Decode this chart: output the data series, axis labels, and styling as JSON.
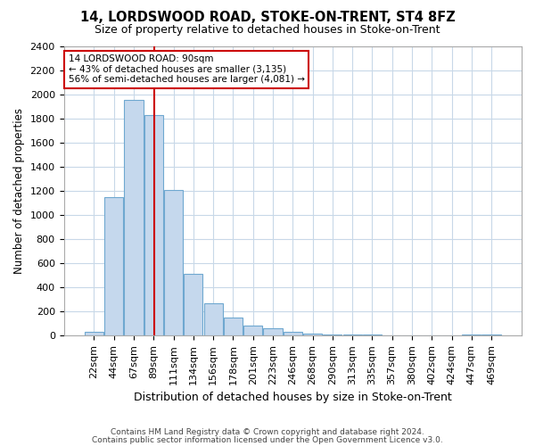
{
  "title": "14, LORDSWOOD ROAD, STOKE-ON-TRENT, ST4 8FZ",
  "subtitle": "Size of property relative to detached houses in Stoke-on-Trent",
  "xlabel": "Distribution of detached houses by size in Stoke-on-Trent",
  "ylabel": "Number of detached properties",
  "bar_labels": [
    "22sqm",
    "44sqm",
    "67sqm",
    "89sqm",
    "111sqm",
    "134sqm",
    "156sqm",
    "178sqm",
    "201sqm",
    "223sqm",
    "246sqm",
    "268sqm",
    "290sqm",
    "313sqm",
    "335sqm",
    "357sqm",
    "380sqm",
    "402sqm",
    "424sqm",
    "447sqm",
    "469sqm"
  ],
  "bar_values": [
    30,
    1150,
    1950,
    1830,
    1210,
    510,
    265,
    150,
    80,
    60,
    35,
    20,
    12,
    10,
    8,
    6,
    4,
    3,
    2,
    10,
    10
  ],
  "bar_color": "#c5d8ed",
  "bar_edge_color": "#6fa8d0",
  "vline_color": "#cc0000",
  "annotation_title": "14 LORDSWOOD ROAD: 90sqm",
  "annotation_line1": "← 43% of detached houses are smaller (3,135)",
  "annotation_line2": "56% of semi-detached houses are larger (4,081) →",
  "annotation_box_color": "#ffffff",
  "annotation_box_edge": "#cc0000",
  "ylim": [
    0,
    2400
  ],
  "yticks": [
    0,
    200,
    400,
    600,
    800,
    1000,
    1200,
    1400,
    1600,
    1800,
    2000,
    2200,
    2400
  ],
  "footer1": "Contains HM Land Registry data © Crown copyright and database right 2024.",
  "footer2": "Contains public sector information licensed under the Open Government Licence v3.0.",
  "bg_color": "#ffffff",
  "grid_color": "#c8d8e8"
}
